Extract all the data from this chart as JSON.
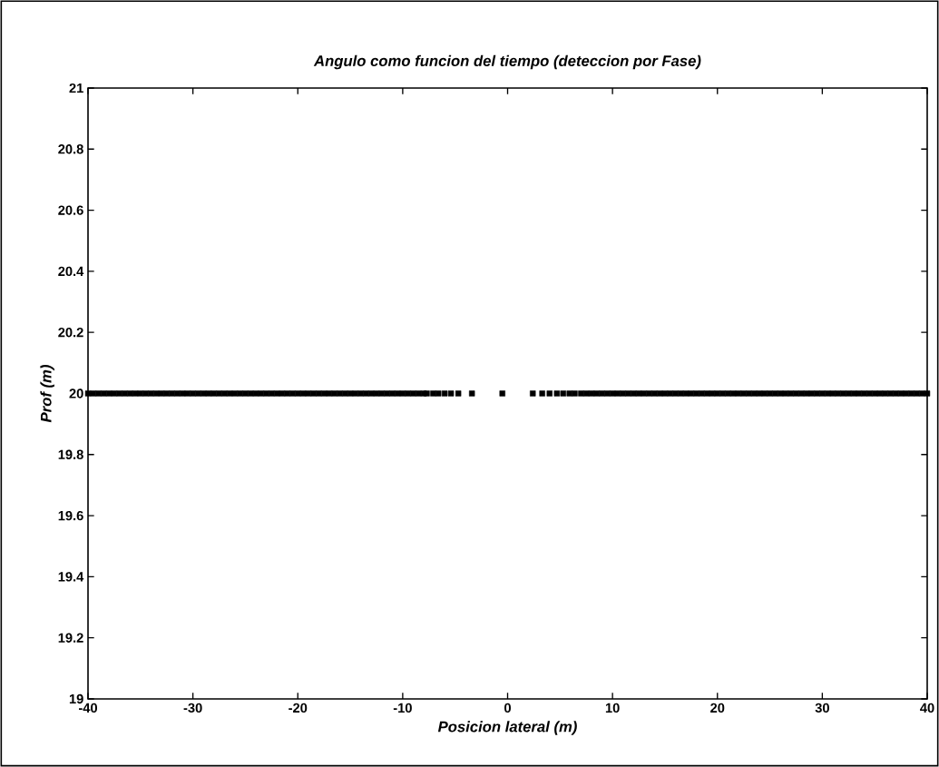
{
  "chart_data": {
    "type": "scatter",
    "title": "Angulo como funcion del tiempo (deteccion por Fase)",
    "xlabel": "Posicion lateral (m)",
    "ylabel": "Prof (m)",
    "xlim": [
      -40,
      40
    ],
    "ylim": [
      19,
      21
    ],
    "xticks": [
      -40,
      -30,
      -20,
      -10,
      0,
      10,
      20,
      30,
      40
    ],
    "yticks": [
      19,
      19.2,
      19.4,
      19.6,
      19.8,
      20,
      20.2,
      20.4,
      20.6,
      20.8,
      21
    ],
    "marker": "square",
    "x": [
      -40,
      -39.5,
      -39,
      -38.5,
      -38,
      -37.5,
      -37,
      -36.5,
      -36,
      -35.5,
      -35,
      -34.5,
      -34,
      -33.5,
      -33,
      -32.5,
      -32,
      -31.5,
      -31,
      -30.5,
      -30,
      -29.5,
      -29,
      -28.5,
      -28,
      -27.5,
      -27,
      -26.5,
      -26,
      -25.5,
      -25,
      -24.5,
      -24,
      -23.5,
      -23,
      -22.5,
      -22,
      -21.5,
      -21,
      -20.5,
      -20,
      -19.5,
      -19,
      -18.5,
      -18,
      -17.5,
      -17,
      -16.5,
      -16,
      -15.5,
      -15,
      -14.5,
      -14,
      -13.5,
      -13,
      -12.5,
      -12,
      -11.5,
      -11,
      -10.5,
      -10,
      -9.5,
      -9,
      -8.5,
      -8,
      -7.7,
      -7.1,
      -6.6,
      -6.0,
      -5.4,
      -4.7,
      -3.4,
      -0.5,
      2.4,
      3.3,
      4.0,
      4.7,
      5.3,
      5.9,
      6.4,
      7.0,
      7.5,
      8,
      8.5,
      9,
      9.5,
      10,
      10.5,
      11,
      11.5,
      12,
      12.5,
      13,
      13.5,
      14,
      14.5,
      15,
      15.5,
      16,
      16.5,
      17,
      17.5,
      18,
      18.5,
      19,
      19.5,
      20,
      20.5,
      21,
      21.5,
      22,
      22.5,
      23,
      23.5,
      24,
      24.5,
      25,
      25.5,
      26,
      26.5,
      27,
      27.5,
      28,
      28.5,
      29,
      29.5,
      30,
      30.5,
      31,
      31.5,
      32,
      32.5,
      33,
      33.5,
      34,
      34.5,
      35,
      35.5,
      36,
      36.5,
      37,
      37.5,
      38,
      38.5,
      39,
      39.5,
      40
    ],
    "series": [
      {
        "color": "#000000",
        "values": [
          20,
          20,
          20,
          20,
          20,
          20,
          20,
          20,
          20,
          20,
          20,
          20,
          20,
          20,
          20,
          20,
          20,
          20,
          20,
          20,
          20,
          20,
          20,
          20,
          20,
          20,
          20,
          20,
          20,
          20,
          20,
          20,
          20,
          20,
          20,
          20,
          20,
          20,
          20,
          20,
          20,
          20,
          20,
          20,
          20,
          20,
          20,
          20,
          20,
          20,
          20,
          20,
          20,
          20,
          20,
          20,
          20,
          20,
          20,
          20,
          20,
          20,
          20,
          20,
          20,
          20,
          20,
          20,
          20,
          20,
          20,
          20,
          20,
          20,
          20,
          20,
          20,
          20,
          20,
          20,
          20,
          20,
          20,
          20,
          20,
          20,
          20,
          20,
          20,
          20,
          20,
          20,
          20,
          20,
          20,
          20,
          20,
          20,
          20,
          20,
          20,
          20,
          20,
          20,
          20,
          20,
          20,
          20,
          20,
          20,
          20,
          20,
          20,
          20,
          20,
          20,
          20,
          20,
          20,
          20,
          20,
          20,
          20,
          20,
          20,
          20,
          20,
          20,
          20,
          20,
          20,
          20,
          20,
          20,
          20,
          20,
          20,
          20,
          20,
          20,
          20,
          20,
          20,
          20,
          20,
          20,
          20
        ]
      }
    ]
  }
}
